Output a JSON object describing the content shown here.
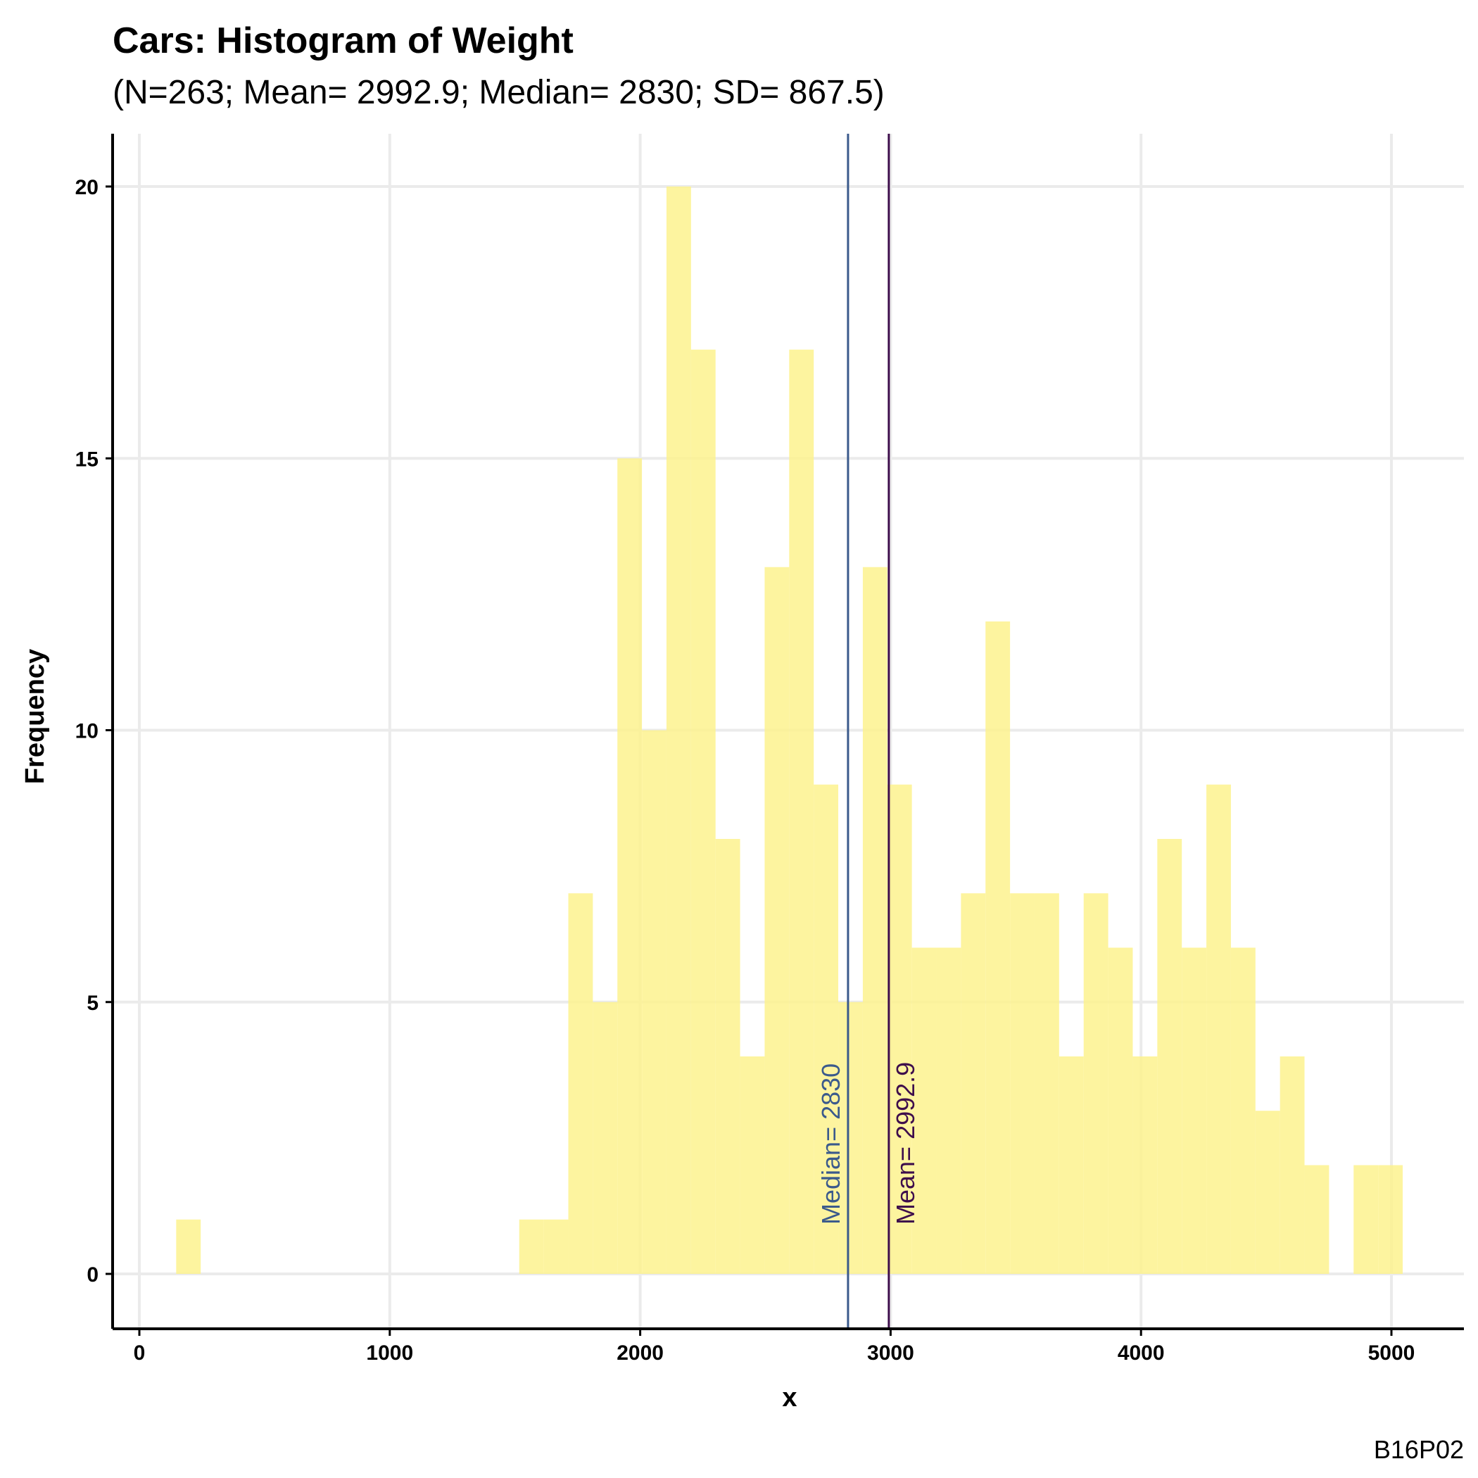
{
  "chart_data": {
    "type": "bar",
    "title": "Cars: Histogram of Weight",
    "subtitle": "(N=263; Mean= 2992.9; Median= 2830; SD= 867.5)",
    "xlabel": "x",
    "ylabel": "Frequency",
    "caption": "B16P02",
    "xlim": [
      -100,
      5300
    ],
    "ylim": [
      -1,
      21
    ],
    "x_ticks": [
      0,
      1000,
      2000,
      3000,
      4000,
      5000
    ],
    "y_ticks": [
      0,
      5,
      10,
      15,
      20
    ],
    "grid": true,
    "bar_color": "#FDF28E",
    "bins": [
      {
        "start": 147,
        "end": 245,
        "count": 1
      },
      {
        "start": 1517,
        "end": 1615,
        "count": 1
      },
      {
        "start": 1615,
        "end": 1713,
        "count": 1
      },
      {
        "start": 1713,
        "end": 1811,
        "count": 7
      },
      {
        "start": 1811,
        "end": 1909,
        "count": 5
      },
      {
        "start": 1909,
        "end": 2007,
        "count": 15
      },
      {
        "start": 2007,
        "end": 2105,
        "count": 10
      },
      {
        "start": 2105,
        "end": 2203,
        "count": 20
      },
      {
        "start": 2203,
        "end": 2301,
        "count": 17
      },
      {
        "start": 2301,
        "end": 2399,
        "count": 8
      },
      {
        "start": 2399,
        "end": 2497,
        "count": 4
      },
      {
        "start": 2497,
        "end": 2595,
        "count": 13
      },
      {
        "start": 2595,
        "end": 2693,
        "count": 17
      },
      {
        "start": 2693,
        "end": 2791,
        "count": 9
      },
      {
        "start": 2791,
        "end": 2889,
        "count": 5
      },
      {
        "start": 2889,
        "end": 2987,
        "count": 13
      },
      {
        "start": 2987,
        "end": 3085,
        "count": 9
      },
      {
        "start": 3085,
        "end": 3183,
        "count": 6
      },
      {
        "start": 3183,
        "end": 3281,
        "count": 6
      },
      {
        "start": 3281,
        "end": 3379,
        "count": 7
      },
      {
        "start": 3379,
        "end": 3477,
        "count": 12
      },
      {
        "start": 3477,
        "end": 3575,
        "count": 7
      },
      {
        "start": 3575,
        "end": 3673,
        "count": 7
      },
      {
        "start": 3673,
        "end": 3771,
        "count": 4
      },
      {
        "start": 3771,
        "end": 3869,
        "count": 7
      },
      {
        "start": 3869,
        "end": 3967,
        "count": 6
      },
      {
        "start": 3967,
        "end": 4065,
        "count": 4
      },
      {
        "start": 4065,
        "end": 4163,
        "count": 8
      },
      {
        "start": 4163,
        "end": 4261,
        "count": 6
      },
      {
        "start": 4261,
        "end": 4359,
        "count": 9
      },
      {
        "start": 4359,
        "end": 4457,
        "count": 6
      },
      {
        "start": 4457,
        "end": 4555,
        "count": 3
      },
      {
        "start": 4555,
        "end": 4653,
        "count": 4
      },
      {
        "start": 4653,
        "end": 4751,
        "count": 2
      },
      {
        "start": 4849,
        "end": 4947,
        "count": 2
      },
      {
        "start": 4947,
        "end": 5045,
        "count": 2
      }
    ],
    "reference_lines": [
      {
        "name": "median",
        "x": 2830,
        "label": "Median= 2830",
        "color": "#3B5A8C"
      },
      {
        "name": "mean",
        "x": 2992.9,
        "label": "Mean= 2992.9",
        "color": "#3E0E4C"
      }
    ]
  }
}
